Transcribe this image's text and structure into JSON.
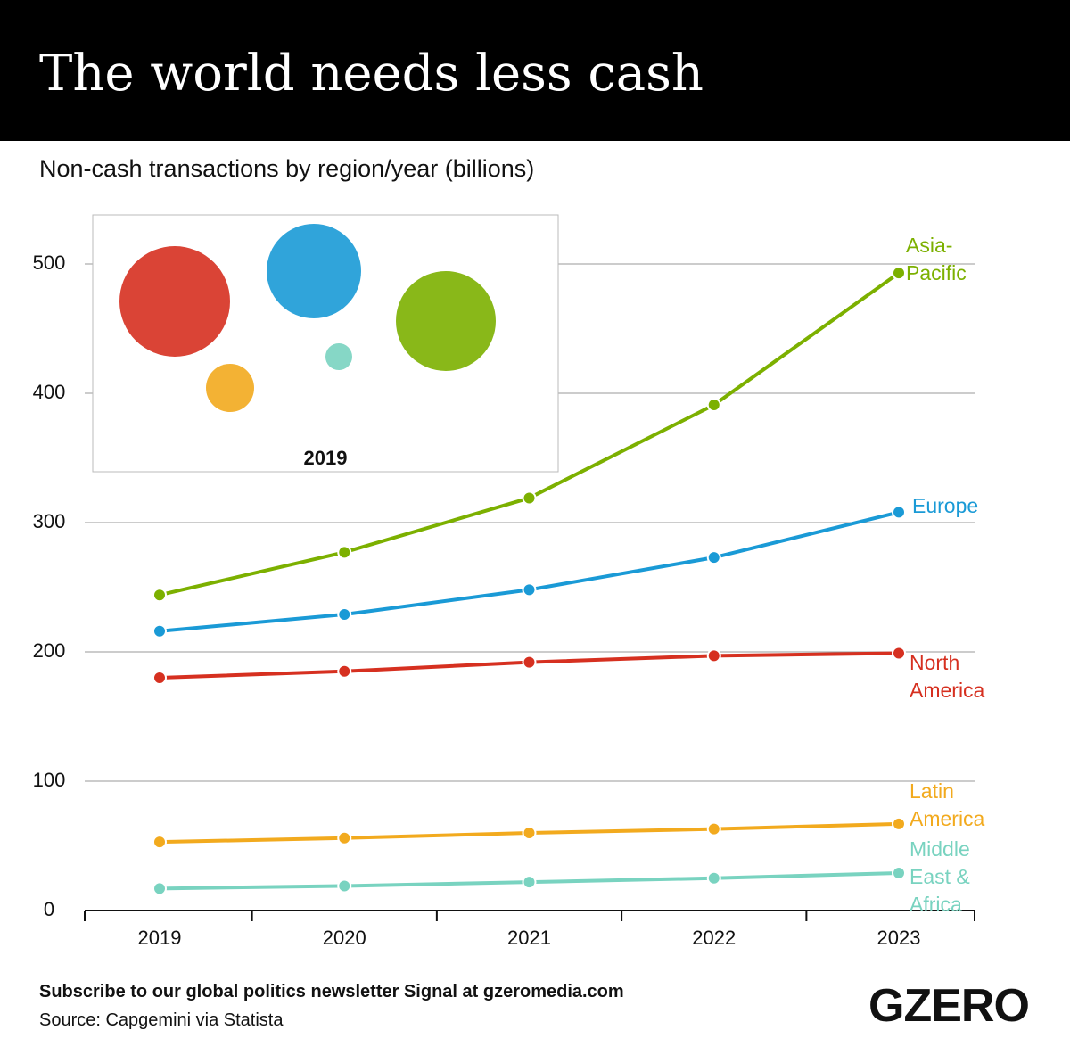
{
  "chart_data": {
    "type": "line",
    "title": "The world needs less cash",
    "subtitle": "Non-cash transactions by region/year (billions)",
    "categories": [
      "2019",
      "2020",
      "2021",
      "2022",
      "2023"
    ],
    "series": [
      {
        "name": "Asia-Pacific",
        "color": "#7cb000",
        "values": [
          244,
          277,
          319,
          391,
          493
        ]
      },
      {
        "name": "Europe",
        "color": "#1a9ad6",
        "values": [
          216,
          229,
          248,
          273,
          308
        ]
      },
      {
        "name": "North America",
        "color": "#d63020",
        "values": [
          180,
          185,
          192,
          197,
          199
        ]
      },
      {
        "name": "Latin America",
        "color": "#f2aa1e",
        "values": [
          53,
          56,
          60,
          63,
          67
        ]
      },
      {
        "name": "Middle East & Africa",
        "color": "#79d3c0",
        "values": [
          17,
          19,
          22,
          25,
          29
        ]
      }
    ],
    "ylim": [
      0,
      500
    ],
    "yticks": [
      0,
      100,
      200,
      300,
      400,
      500
    ],
    "grid": true,
    "inset_title": "2019"
  },
  "footer": {
    "subscribe": "Subscribe to our global politics newsletter Signal at gzeromedia.com",
    "source": "Source: Capgemini via Statista",
    "logo": "GZERO"
  }
}
